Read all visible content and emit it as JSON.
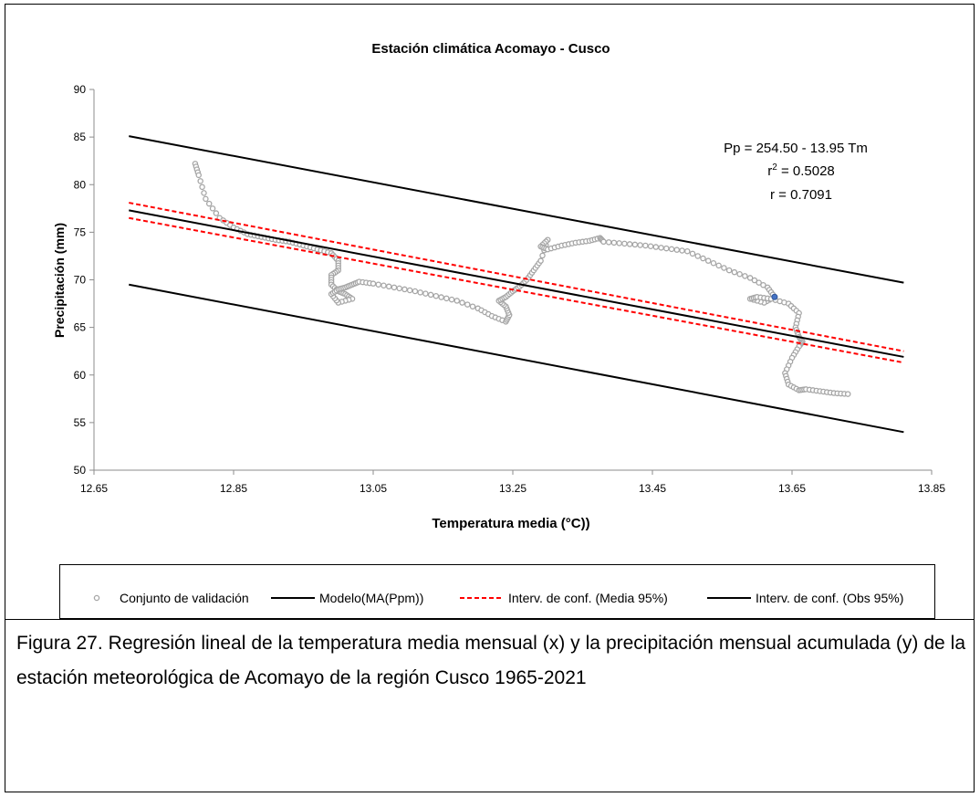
{
  "caption": "Figura 27. Regresión lineal de la temperatura media mensual (x) y la precipitación mensual acumulada (y) de la estación meteorológica de Acomayo de la región Cusco 1965-2021",
  "chart_data": {
    "type": "scatter",
    "title": "Estación climática Acomayo - Cusco",
    "xlabel": "Temperatura media (°C))",
    "ylabel": "Precipitación (mm)",
    "xlim": [
      12.65,
      13.85
    ],
    "ylim": [
      50,
      90
    ],
    "xticks": [
      "12.65",
      "12.85",
      "13.05",
      "13.25",
      "13.45",
      "13.65",
      "13.85"
    ],
    "yticks": [
      "50",
      "55",
      "60",
      "65",
      "70",
      "75",
      "80",
      "85",
      "90"
    ],
    "grid": false,
    "legend_position": "bottom",
    "annotations": {
      "equation": "Pp = 254.50 - 13.95 Tm",
      "r2_prefix": "r",
      "r2_sup": "2",
      "r2_rest": " = 0.5028",
      "r": "r = 0.7091"
    },
    "series": [
      {
        "name": "Conjunto de validación",
        "kind": "markers",
        "color": "#a6a6a6",
        "x": [
          12.795,
          12.8,
          12.81,
          12.83,
          12.85,
          12.87,
          12.89,
          12.91,
          12.93,
          12.95,
          12.97,
          12.99,
          13.0,
          13.0,
          12.99,
          12.99,
          13.0,
          13.01,
          13.02,
          13.0,
          12.99,
          13.0,
          13.01,
          13.02,
          13.03,
          13.05,
          13.08,
          13.11,
          13.14,
          13.17,
          13.2,
          13.22,
          13.24,
          13.245,
          13.24,
          13.23,
          13.24,
          13.25,
          13.26,
          13.27,
          13.28,
          13.29,
          13.3,
          13.29,
          13.3,
          13.32,
          13.34,
          13.36,
          13.375,
          13.38,
          13.41,
          13.44,
          13.47,
          13.5,
          13.53,
          13.56,
          13.59,
          13.615,
          13.625,
          13.61,
          13.59,
          13.6,
          13.62,
          13.645,
          13.66,
          13.655,
          13.66,
          13.665,
          13.66,
          13.65,
          13.64,
          13.645,
          13.66,
          13.67,
          13.69,
          13.71,
          13.73
        ],
        "y": [
          82.2,
          81.0,
          78.5,
          76.5,
          75.5,
          74.8,
          74.5,
          74.2,
          74.0,
          73.6,
          73.2,
          72.8,
          72.0,
          71.0,
          70.5,
          69.5,
          68.8,
          68.5,
          68.0,
          67.6,
          68.5,
          69.0,
          69.2,
          69.5,
          69.8,
          69.6,
          69.2,
          68.8,
          68.3,
          67.8,
          67.0,
          66.2,
          65.6,
          66.3,
          67.2,
          67.8,
          68.2,
          68.8,
          69.3,
          70.0,
          71.0,
          72.0,
          74.2,
          73.5,
          73.2,
          73.6,
          73.9,
          74.1,
          74.4,
          74.0,
          73.8,
          73.6,
          73.3,
          73.0,
          72.0,
          71.0,
          70.2,
          69.2,
          68.2,
          67.6,
          68.0,
          68.2,
          68.0,
          67.5,
          66.5,
          65.0,
          64.0,
          63.5,
          63.0,
          61.8,
          60.2,
          59.0,
          58.4,
          58.5,
          58.3,
          58.1,
          58.0
        ]
      },
      {
        "name": "Modelo(MA(Ppm))",
        "kind": "line",
        "color": "#000000",
        "x": [
          12.7,
          13.81
        ],
        "y": [
          77.3,
          61.9
        ]
      },
      {
        "name": "Interv. de conf. (Media 95%)",
        "kind": "dashed",
        "color": "#ff0000",
        "lines": [
          {
            "x": [
              12.7,
              13.81
            ],
            "y": [
              78.1,
              62.5
            ]
          },
          {
            "x": [
              12.7,
              13.81
            ],
            "y": [
              76.5,
              61.3
            ]
          }
        ]
      },
      {
        "name": "Interv. de conf. (Obs 95%)",
        "kind": "line",
        "color": "#000000",
        "lines": [
          {
            "x": [
              12.7,
              13.81
            ],
            "y": [
              85.1,
              69.7
            ]
          },
          {
            "x": [
              12.7,
              13.81
            ],
            "y": [
              69.5,
              54.0
            ]
          }
        ]
      }
    ],
    "highlight_point": {
      "x": 13.625,
      "y": 68.2,
      "color": "#4472c4"
    }
  }
}
